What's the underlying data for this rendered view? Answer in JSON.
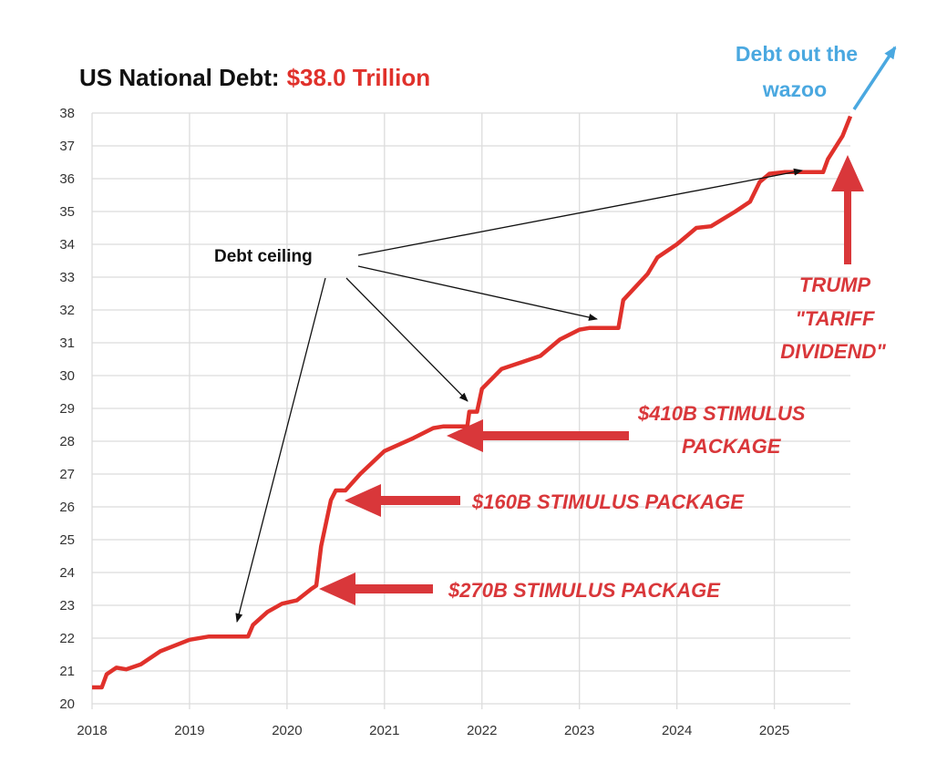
{
  "chart_data": {
    "type": "line",
    "title": "US National Debt:",
    "title_value": "$38.0 Trillion",
    "xlabel": "",
    "ylabel": "",
    "xlim": [
      2018,
      2025.78
    ],
    "ylim": [
      20,
      38
    ],
    "grid": true,
    "x_ticks": [
      "2018",
      "2019",
      "2020",
      "2021",
      "2022",
      "2023",
      "2024",
      "2025"
    ],
    "y_ticks": [
      "20",
      "21",
      "22",
      "23",
      "24",
      "25",
      "26",
      "27",
      "28",
      "29",
      "30",
      "31",
      "32",
      "33",
      "34",
      "35",
      "36",
      "37",
      "38"
    ],
    "series": [
      {
        "name": "US National Debt (trillions $)",
        "color": "#e0312b",
        "x": [
          2018.0,
          2018.1,
          2018.15,
          2018.25,
          2018.35,
          2018.5,
          2018.7,
          2019.0,
          2019.2,
          2019.6,
          2019.65,
          2019.8,
          2019.95,
          2020.1,
          2020.25,
          2020.3,
          2020.35,
          2020.45,
          2020.5,
          2020.6,
          2020.75,
          2021.0,
          2021.3,
          2021.5,
          2021.6,
          2021.85,
          2021.87,
          2021.95,
          2022.0,
          2022.2,
          2022.4,
          2022.6,
          2022.8,
          2023.0,
          2023.1,
          2023.4,
          2023.45,
          2023.7,
          2023.8,
          2024.0,
          2024.2,
          2024.35,
          2024.6,
          2024.75,
          2024.85,
          2024.95,
          2025.1,
          2025.5,
          2025.55,
          2025.7,
          2025.78
        ],
        "y": [
          20.5,
          20.5,
          20.9,
          21.1,
          21.05,
          21.2,
          21.6,
          21.95,
          22.05,
          22.05,
          22.4,
          22.8,
          23.05,
          23.15,
          23.5,
          23.6,
          24.8,
          26.2,
          26.5,
          26.5,
          27.0,
          27.7,
          28.1,
          28.4,
          28.45,
          28.45,
          28.9,
          28.9,
          29.6,
          30.2,
          30.4,
          30.6,
          31.1,
          31.4,
          31.45,
          31.45,
          32.3,
          33.1,
          33.6,
          34.0,
          34.5,
          34.55,
          35.0,
          35.3,
          35.9,
          36.15,
          36.2,
          36.2,
          36.6,
          37.3,
          37.9
        ]
      }
    ],
    "annotations": {
      "debt_ceiling": "Debt ceiling",
      "stimulus_410_line1": "$410B STIMULUS",
      "stimulus_410_line2": "PACKAGE",
      "stimulus_160": "$160B STIMULUS PACKAGE",
      "stimulus_270": "$270B STIMULUS PACKAGE",
      "trump_line1": "TRUMP",
      "trump_line2": "\"TARIFF",
      "trump_line3": "DIVIDEND\"",
      "wazoo_line1": "Debt out the",
      "wazoo_line2": "wazoo"
    },
    "colors": {
      "accent_red": "#d9373a",
      "line_red": "#e0312b",
      "blue": "#4aa8e0"
    }
  }
}
